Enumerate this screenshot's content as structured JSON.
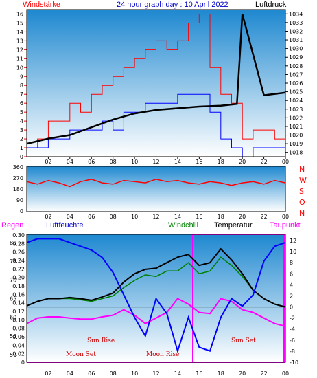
{
  "header": {
    "left_label": "Windstärke",
    "title": "24 hour graph day : 10 April 2022",
    "right_label": "Luftdruck"
  },
  "colors": {
    "wind": "#ff0000",
    "gust": "#0000ff",
    "pressure": "#000000",
    "wind_dir": "#ff0000",
    "regen": "#ff00ff",
    "luftfeuchte": "#0000ff",
    "windchill": "#008000",
    "temperatur": "#000000",
    "taupunkt": "#ff00ff",
    "panel_top": "#1e88d0",
    "panel_bottom": "#ffffff"
  },
  "panel3": {
    "labels": {
      "regen": "Regen",
      "luftfeuchte": "Luftfeuchte",
      "windchill": "Windchill",
      "temperatur": "Temperatur",
      "taupunkt": "Taupunkt"
    },
    "events": {
      "sun_rise": "Sun Rise",
      "sun_set": "Sun Set",
      "moon_set": "Moon Set",
      "moon_rise": "Moon Rise"
    }
  },
  "chart_data": [
    {
      "type": "line",
      "xlabel": "",
      "x_ticks": [
        "02",
        "04",
        "06",
        "08",
        "10",
        "12",
        "14",
        "16",
        "18",
        "20",
        "22",
        "00"
      ],
      "y_left": {
        "name": "Windstärke",
        "ticks": [
          0,
          1,
          2,
          3,
          4,
          5,
          6,
          7,
          8,
          9,
          10,
          11,
          12,
          13,
          14,
          15,
          16
        ],
        "ylim": [
          0,
          16.5
        ]
      },
      "y_right": {
        "name": "Luftdruck",
        "ticks": [
          1018,
          1019,
          1020,
          1021,
          1022,
          1023,
          1024,
          1025,
          1026,
          1027,
          1028,
          1029,
          1030,
          1031,
          1032,
          1033,
          1034
        ],
        "ylim": [
          1017.5,
          1034.5
        ]
      },
      "series": [
        {
          "name": "Luftdruck",
          "axis": "right",
          "x": [
            0,
            2,
            4,
            6,
            8,
            10,
            12,
            14,
            16,
            18,
            19.5,
            20,
            22,
            24
          ],
          "values": [
            1019.0,
            1019.6,
            1020.0,
            1020.9,
            1021.8,
            1022.5,
            1022.9,
            1023.1,
            1023.3,
            1023.4,
            1023.6,
            1034.0,
            1024.6,
            1024.9
          ]
        },
        {
          "name": "Windstärke (gust)",
          "axis": "left",
          "x": [
            0,
            1,
            2,
            3,
            4,
            5,
            6,
            7,
            8,
            9,
            10,
            11,
            12,
            13,
            14,
            15,
            16,
            17,
            18,
            19,
            20,
            21,
            22,
            23,
            24
          ],
          "values": [
            1,
            2,
            4,
            4,
            6,
            5,
            7,
            8,
            9,
            10,
            11,
            12,
            13,
            12,
            13,
            15,
            16,
            10,
            7,
            6,
            2,
            3,
            3,
            2,
            2
          ]
        },
        {
          "name": "Windstärke (mean)",
          "axis": "left",
          "x": [
            0,
            1,
            2,
            3,
            4,
            5,
            6,
            7,
            8,
            9,
            10,
            11,
            12,
            13,
            14,
            15,
            16,
            17,
            18,
            19,
            20,
            21,
            22,
            23,
            24
          ],
          "values": [
            1,
            1,
            2,
            2,
            3,
            3,
            3,
            4,
            3,
            5,
            5,
            6,
            6,
            6,
            7,
            7,
            7,
            5,
            2,
            1,
            0,
            1,
            1,
            1,
            1
          ]
        }
      ]
    },
    {
      "type": "line",
      "x_ticks": [
        "02",
        "04",
        "06",
        "08",
        "10",
        "12",
        "14",
        "16",
        "18",
        "20",
        "22",
        "00"
      ],
      "y_left_ticks": [
        0,
        90,
        180,
        270,
        360
      ],
      "y_right_ticks": [
        "N",
        "W",
        "S",
        "O",
        "N"
      ],
      "ylim": [
        0,
        360
      ],
      "series": [
        {
          "name": "Windrichtung",
          "x": [
            0,
            1,
            2,
            3,
            4,
            5,
            6,
            7,
            8,
            9,
            10,
            11,
            12,
            13,
            14,
            15,
            16,
            17,
            18,
            19,
            20,
            21,
            22,
            23,
            24
          ],
          "values": [
            240,
            220,
            250,
            230,
            200,
            240,
            260,
            230,
            220,
            250,
            240,
            230,
            260,
            240,
            250,
            230,
            220,
            240,
            230,
            210,
            230,
            240,
            220,
            250,
            230
          ]
        }
      ]
    },
    {
      "type": "line",
      "x_ticks": [
        "02",
        "04",
        "06",
        "08",
        "10",
        "12",
        "14",
        "16",
        "18",
        "20",
        "22",
        "00"
      ],
      "y_regen": {
        "name": "Regen",
        "ticks": [
          0,
          0.02,
          0.04,
          0.06,
          0.08,
          0.1,
          0.12,
          0.14,
          0.16,
          0.18,
          0.2,
          0.22,
          0.24,
          0.26,
          0.28,
          0.3
        ],
        "ylim": [
          0,
          0.3
        ]
      },
      "y_feuchte": {
        "name": "Luftfeuchte",
        "ticks": [
          50,
          55,
          60,
          65,
          70,
          75,
          80
        ],
        "ylim": [
          48,
          82
        ]
      },
      "y_temp": {
        "name": "Temperatur",
        "ticks": [
          -10,
          -8,
          -6,
          -4,
          -2,
          0,
          2,
          4,
          6,
          8,
          10,
          12
        ],
        "ylim": [
          -10,
          13
        ]
      },
      "series": [
        {
          "name": "Luftfeuchte",
          "axis": "feuchte",
          "x": [
            0,
            1,
            2,
            3,
            4,
            5,
            6,
            7,
            8,
            9,
            10,
            11,
            12,
            13,
            14,
            15,
            16,
            17,
            18,
            19,
            20,
            21,
            22,
            23,
            24
          ],
          "values": [
            80,
            81,
            81,
            81,
            80,
            79,
            78,
            76,
            72,
            66,
            60,
            55,
            65,
            61,
            51,
            60,
            52,
            51,
            60,
            65,
            63,
            66,
            75,
            79,
            80
          ]
        },
        {
          "name": "Temperatur",
          "axis": "temp",
          "x": [
            0,
            1,
            2,
            3,
            4,
            5,
            6,
            7,
            8,
            9,
            10,
            11,
            12,
            13,
            14,
            15,
            16,
            17,
            18,
            19,
            20,
            21,
            22,
            23,
            24
          ],
          "values": [
            0.2,
            1.0,
            1.5,
            1.5,
            1.7,
            1.5,
            1.2,
            1.8,
            2.5,
            4.5,
            6.0,
            6.8,
            7.0,
            8.0,
            9.0,
            9.5,
            7.5,
            8.0,
            10.5,
            8.5,
            6.0,
            3.0,
            1.5,
            0.5,
            0.0
          ]
        },
        {
          "name": "Windchill",
          "axis": "temp",
          "x": [
            0,
            1,
            2,
            3,
            4,
            5,
            6,
            7,
            8,
            9,
            10,
            11,
            12,
            13,
            14,
            15,
            16,
            17,
            18,
            19,
            20,
            21,
            22,
            23,
            24
          ],
          "values": [
            0.2,
            1.0,
            1.5,
            1.5,
            1.5,
            1.3,
            1.0,
            1.5,
            2.0,
            3.5,
            4.8,
            5.8,
            5.5,
            6.5,
            6.5,
            8.0,
            6.0,
            6.5,
            9.0,
            7.5,
            5.5,
            3.0,
            1.5,
            0.5,
            0.0
          ]
        },
        {
          "name": "Taupunkt",
          "axis": "temp",
          "x": [
            0,
            1,
            2,
            3,
            4,
            5,
            6,
            7,
            8,
            9,
            10,
            11,
            12,
            13,
            14,
            15,
            16,
            17,
            18,
            19,
            20,
            21,
            22,
            23,
            24
          ],
          "values": [
            -3.0,
            -2.0,
            -1.8,
            -1.8,
            -2.0,
            -2.2,
            -2.2,
            -1.8,
            -1.5,
            -0.5,
            -1.5,
            -3.0,
            -2.0,
            -1.0,
            1.5,
            0.5,
            -1.0,
            -1.2,
            1.5,
            1.0,
            -0.5,
            -1.0,
            -2.0,
            -3.0,
            -3.5
          ]
        },
        {
          "name": "Regen",
          "axis": "regen",
          "x": [
            0,
            24
          ],
          "values": [
            0,
            0
          ]
        }
      ]
    }
  ]
}
